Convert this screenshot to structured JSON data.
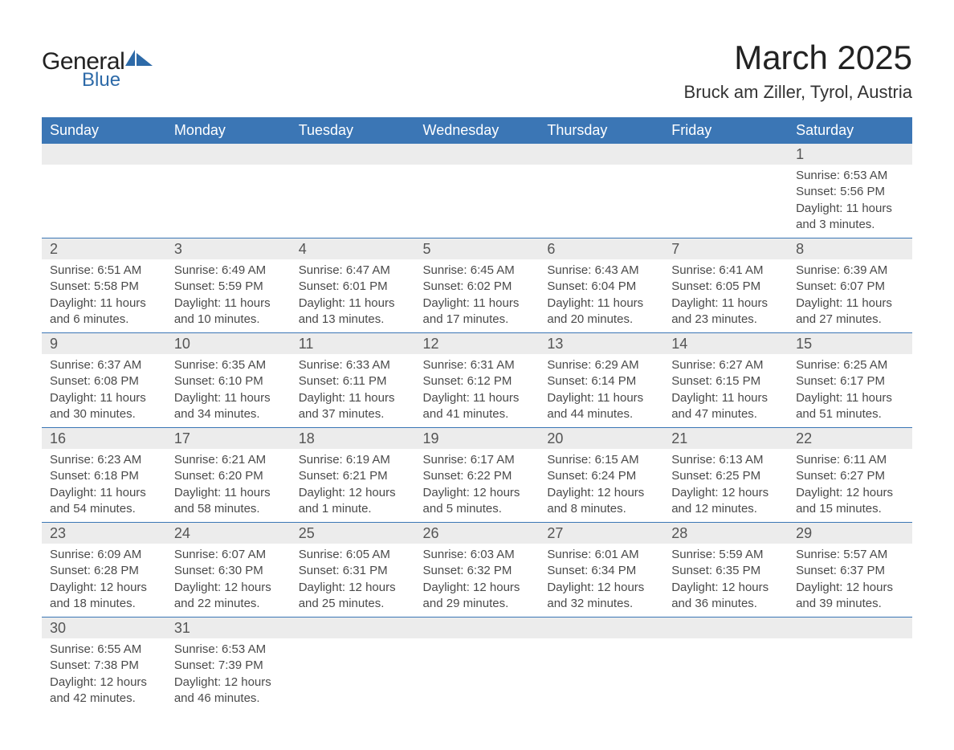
{
  "logo": {
    "text1": "General",
    "text2": "Blue",
    "icon_color": "#2d6aa8"
  },
  "title": "March 2025",
  "subtitle": "Bruck am Ziller, Tyrol, Austria",
  "calendar": {
    "header_bg": "#3b76b5",
    "daynum_bg": "#ececec",
    "border_color": "#3b76b5",
    "weekdays": [
      "Sunday",
      "Monday",
      "Tuesday",
      "Wednesday",
      "Thursday",
      "Friday",
      "Saturday"
    ],
    "weeks": [
      [
        null,
        null,
        null,
        null,
        null,
        null,
        {
          "n": "1",
          "sr": "Sunrise: 6:53 AM",
          "ss": "Sunset: 5:56 PM",
          "d1": "Daylight: 11 hours",
          "d2": "and 3 minutes."
        }
      ],
      [
        {
          "n": "2",
          "sr": "Sunrise: 6:51 AM",
          "ss": "Sunset: 5:58 PM",
          "d1": "Daylight: 11 hours",
          "d2": "and 6 minutes."
        },
        {
          "n": "3",
          "sr": "Sunrise: 6:49 AM",
          "ss": "Sunset: 5:59 PM",
          "d1": "Daylight: 11 hours",
          "d2": "and 10 minutes."
        },
        {
          "n": "4",
          "sr": "Sunrise: 6:47 AM",
          "ss": "Sunset: 6:01 PM",
          "d1": "Daylight: 11 hours",
          "d2": "and 13 minutes."
        },
        {
          "n": "5",
          "sr": "Sunrise: 6:45 AM",
          "ss": "Sunset: 6:02 PM",
          "d1": "Daylight: 11 hours",
          "d2": "and 17 minutes."
        },
        {
          "n": "6",
          "sr": "Sunrise: 6:43 AM",
          "ss": "Sunset: 6:04 PM",
          "d1": "Daylight: 11 hours",
          "d2": "and 20 minutes."
        },
        {
          "n": "7",
          "sr": "Sunrise: 6:41 AM",
          "ss": "Sunset: 6:05 PM",
          "d1": "Daylight: 11 hours",
          "d2": "and 23 minutes."
        },
        {
          "n": "8",
          "sr": "Sunrise: 6:39 AM",
          "ss": "Sunset: 6:07 PM",
          "d1": "Daylight: 11 hours",
          "d2": "and 27 minutes."
        }
      ],
      [
        {
          "n": "9",
          "sr": "Sunrise: 6:37 AM",
          "ss": "Sunset: 6:08 PM",
          "d1": "Daylight: 11 hours",
          "d2": "and 30 minutes."
        },
        {
          "n": "10",
          "sr": "Sunrise: 6:35 AM",
          "ss": "Sunset: 6:10 PM",
          "d1": "Daylight: 11 hours",
          "d2": "and 34 minutes."
        },
        {
          "n": "11",
          "sr": "Sunrise: 6:33 AM",
          "ss": "Sunset: 6:11 PM",
          "d1": "Daylight: 11 hours",
          "d2": "and 37 minutes."
        },
        {
          "n": "12",
          "sr": "Sunrise: 6:31 AM",
          "ss": "Sunset: 6:12 PM",
          "d1": "Daylight: 11 hours",
          "d2": "and 41 minutes."
        },
        {
          "n": "13",
          "sr": "Sunrise: 6:29 AM",
          "ss": "Sunset: 6:14 PM",
          "d1": "Daylight: 11 hours",
          "d2": "and 44 minutes."
        },
        {
          "n": "14",
          "sr": "Sunrise: 6:27 AM",
          "ss": "Sunset: 6:15 PM",
          "d1": "Daylight: 11 hours",
          "d2": "and 47 minutes."
        },
        {
          "n": "15",
          "sr": "Sunrise: 6:25 AM",
          "ss": "Sunset: 6:17 PM",
          "d1": "Daylight: 11 hours",
          "d2": "and 51 minutes."
        }
      ],
      [
        {
          "n": "16",
          "sr": "Sunrise: 6:23 AM",
          "ss": "Sunset: 6:18 PM",
          "d1": "Daylight: 11 hours",
          "d2": "and 54 minutes."
        },
        {
          "n": "17",
          "sr": "Sunrise: 6:21 AM",
          "ss": "Sunset: 6:20 PM",
          "d1": "Daylight: 11 hours",
          "d2": "and 58 minutes."
        },
        {
          "n": "18",
          "sr": "Sunrise: 6:19 AM",
          "ss": "Sunset: 6:21 PM",
          "d1": "Daylight: 12 hours",
          "d2": "and 1 minute."
        },
        {
          "n": "19",
          "sr": "Sunrise: 6:17 AM",
          "ss": "Sunset: 6:22 PM",
          "d1": "Daylight: 12 hours",
          "d2": "and 5 minutes."
        },
        {
          "n": "20",
          "sr": "Sunrise: 6:15 AM",
          "ss": "Sunset: 6:24 PM",
          "d1": "Daylight: 12 hours",
          "d2": "and 8 minutes."
        },
        {
          "n": "21",
          "sr": "Sunrise: 6:13 AM",
          "ss": "Sunset: 6:25 PM",
          "d1": "Daylight: 12 hours",
          "d2": "and 12 minutes."
        },
        {
          "n": "22",
          "sr": "Sunrise: 6:11 AM",
          "ss": "Sunset: 6:27 PM",
          "d1": "Daylight: 12 hours",
          "d2": "and 15 minutes."
        }
      ],
      [
        {
          "n": "23",
          "sr": "Sunrise: 6:09 AM",
          "ss": "Sunset: 6:28 PM",
          "d1": "Daylight: 12 hours",
          "d2": "and 18 minutes."
        },
        {
          "n": "24",
          "sr": "Sunrise: 6:07 AM",
          "ss": "Sunset: 6:30 PM",
          "d1": "Daylight: 12 hours",
          "d2": "and 22 minutes."
        },
        {
          "n": "25",
          "sr": "Sunrise: 6:05 AM",
          "ss": "Sunset: 6:31 PM",
          "d1": "Daylight: 12 hours",
          "d2": "and 25 minutes."
        },
        {
          "n": "26",
          "sr": "Sunrise: 6:03 AM",
          "ss": "Sunset: 6:32 PM",
          "d1": "Daylight: 12 hours",
          "d2": "and 29 minutes."
        },
        {
          "n": "27",
          "sr": "Sunrise: 6:01 AM",
          "ss": "Sunset: 6:34 PM",
          "d1": "Daylight: 12 hours",
          "d2": "and 32 minutes."
        },
        {
          "n": "28",
          "sr": "Sunrise: 5:59 AM",
          "ss": "Sunset: 6:35 PM",
          "d1": "Daylight: 12 hours",
          "d2": "and 36 minutes."
        },
        {
          "n": "29",
          "sr": "Sunrise: 5:57 AM",
          "ss": "Sunset: 6:37 PM",
          "d1": "Daylight: 12 hours",
          "d2": "and 39 minutes."
        }
      ],
      [
        {
          "n": "30",
          "sr": "Sunrise: 6:55 AM",
          "ss": "Sunset: 7:38 PM",
          "d1": "Daylight: 12 hours",
          "d2": "and 42 minutes."
        },
        {
          "n": "31",
          "sr": "Sunrise: 6:53 AM",
          "ss": "Sunset: 7:39 PM",
          "d1": "Daylight: 12 hours",
          "d2": "and 46 minutes."
        },
        null,
        null,
        null,
        null,
        null
      ]
    ]
  }
}
